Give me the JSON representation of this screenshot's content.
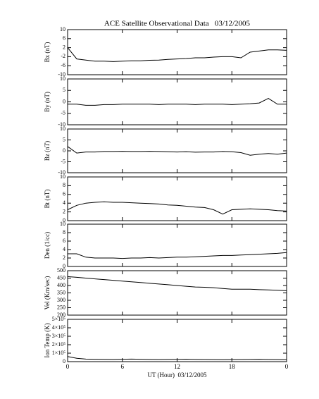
{
  "chart_data": [
    {
      "type": "line",
      "title": "ACE Satellite Observational Data   03/12/2005",
      "ylabel": "Bx (nT)",
      "x": [
        0,
        1,
        2,
        3,
        4,
        5,
        6,
        7,
        8,
        9,
        10,
        11,
        12,
        13,
        14,
        15,
        16,
        17,
        18,
        19,
        20,
        21,
        22,
        23,
        24
      ],
      "values": [
        2,
        -3,
        -3.5,
        -4,
        -4,
        -4.2,
        -4,
        -3.8,
        -3.8,
        -3.6,
        -3.5,
        -3.2,
        -3,
        -2.8,
        -2.5,
        -2.5,
        -2.2,
        -2,
        -2,
        -2.5,
        0,
        0.5,
        1,
        1,
        0.8
      ],
      "color": "#000000",
      "ylim": [
        -10,
        10
      ],
      "yticks": [
        -10,
        -6,
        -2,
        2,
        6,
        10
      ]
    },
    {
      "type": "line",
      "ylabel": "By (nT)",
      "x": [
        0,
        1,
        2,
        3,
        4,
        5,
        6,
        7,
        8,
        9,
        10,
        11,
        12,
        13,
        14,
        15,
        16,
        17,
        18,
        19,
        20,
        21,
        22,
        23,
        24
      ],
      "values": [
        -1,
        -1,
        -1.5,
        -1.5,
        -1.2,
        -1.2,
        -1,
        -1,
        -1,
        -1,
        -1.2,
        -1,
        -1,
        -1,
        -1.2,
        -1,
        -1,
        -1,
        -1.2,
        -1,
        -0.8,
        -0.5,
        1.5,
        -1,
        -1
      ],
      "color": "#000000",
      "ylim": [
        -10,
        10
      ],
      "yticks": [
        -10,
        -5,
        0,
        5,
        10
      ]
    },
    {
      "type": "line",
      "ylabel": "Bz (nT)",
      "x": [
        0,
        1,
        2,
        3,
        4,
        5,
        6,
        7,
        8,
        9,
        10,
        11,
        12,
        13,
        14,
        15,
        16,
        17,
        18,
        19,
        20,
        21,
        22,
        23,
        24
      ],
      "values": [
        2,
        -1,
        -0.5,
        -0.5,
        -0.3,
        -0.3,
        -0.2,
        -0.3,
        -0.3,
        -0.2,
        -0.3,
        -0.4,
        -0.5,
        -0.4,
        -0.6,
        -0.5,
        -0.5,
        -0.3,
        -0.4,
        -0.8,
        -2,
        -1.5,
        -1.2,
        -1.5,
        -1
      ],
      "color": "#000000",
      "ylim": [
        -10,
        10
      ],
      "yticks": [
        -10,
        -5,
        0,
        5,
        10
      ]
    },
    {
      "type": "line",
      "ylabel": "Bt (nT)",
      "x": [
        0,
        1,
        2,
        3,
        4,
        5,
        6,
        7,
        8,
        9,
        10,
        11,
        12,
        13,
        14,
        15,
        16,
        17,
        18,
        19,
        20,
        21,
        22,
        23,
        24
      ],
      "values": [
        2.5,
        3.5,
        4,
        4.2,
        4.3,
        4.2,
        4.2,
        4.1,
        4,
        3.9,
        3.8,
        3.6,
        3.5,
        3.3,
        3.1,
        3,
        2.5,
        1.5,
        2.5,
        2.6,
        2.7,
        2.6,
        2.5,
        2.3,
        2.2
      ],
      "color": "#000000",
      "ylim": [
        0,
        10
      ],
      "yticks": [
        0,
        2,
        4,
        6,
        8,
        10
      ]
    },
    {
      "type": "line",
      "ylabel": "Den (1/cc)",
      "x": [
        0,
        1,
        2,
        3,
        4,
        5,
        6,
        7,
        8,
        9,
        10,
        11,
        12,
        13,
        14,
        15,
        16,
        17,
        18,
        19,
        20,
        21,
        22,
        23,
        24
      ],
      "values": [
        3,
        3,
        2.2,
        2,
        2,
        2,
        1.9,
        2,
        2,
        2.1,
        2,
        2.1,
        2.2,
        2.2,
        2.3,
        2.4,
        2.5,
        2.6,
        2.6,
        2.7,
        2.8,
        2.9,
        3,
        3.1,
        3.3
      ],
      "color": "#000000",
      "ylim": [
        0,
        10
      ],
      "yticks": [
        0,
        2,
        4,
        6,
        8,
        10
      ]
    },
    {
      "type": "line",
      "ylabel": "Vel (Km/sec)",
      "x": [
        0,
        1,
        2,
        3,
        4,
        5,
        6,
        7,
        8,
        9,
        10,
        11,
        12,
        13,
        14,
        15,
        16,
        17,
        18,
        19,
        20,
        21,
        22,
        23,
        24
      ],
      "values": [
        460,
        455,
        450,
        445,
        440,
        435,
        430,
        425,
        420,
        415,
        410,
        405,
        400,
        395,
        390,
        388,
        385,
        380,
        375,
        375,
        375,
        372,
        370,
        368,
        365
      ],
      "color": "#000000",
      "ylim": [
        200,
        500
      ],
      "yticks": [
        200,
        250,
        300,
        350,
        400,
        450,
        500
      ]
    },
    {
      "type": "line",
      "ylabel": "Ion Temp (K)",
      "xlabel": "UT (Hour)  03/12/2005",
      "x": [
        0,
        1,
        2,
        3,
        4,
        5,
        6,
        7,
        8,
        9,
        10,
        11,
        12,
        13,
        14,
        15,
        16,
        17,
        18,
        19,
        20,
        21,
        22,
        23,
        24
      ],
      "values": [
        60000,
        40000,
        30000,
        28000,
        27000,
        26000,
        28000,
        30000,
        28000,
        26000,
        25000,
        26000,
        27000,
        28000,
        26000,
        25000,
        24000,
        23000,
        24000,
        25000,
        26000,
        27000,
        25000,
        24000,
        23000
      ],
      "color": "#000000",
      "ylim": [
        0,
        500000
      ],
      "yticks": [
        0,
        {
          "value": 100000,
          "label": "1×10⁵"
        },
        {
          "value": 200000,
          "label": "2×10⁵"
        },
        {
          "value": 300000,
          "label": "3×10⁵"
        },
        {
          "value": 400000,
          "label": "4×10⁵"
        },
        {
          "value": 500000,
          "label": "5×10⁵"
        }
      ],
      "xlim": [
        0,
        24
      ],
      "xticks": [
        0,
        6,
        12,
        18,
        {
          "value": 24,
          "label": "0"
        }
      ]
    }
  ]
}
